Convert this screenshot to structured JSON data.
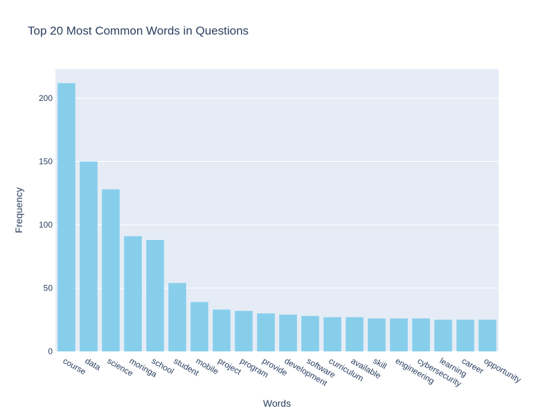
{
  "chart_data": {
    "type": "bar",
    "title": "Top 20 Most Common Words in Questions",
    "x_label": "Words",
    "y_label": "Frequency",
    "categories": [
      "course",
      "data",
      "science",
      "moringa",
      "school",
      "student",
      "mobile",
      "project",
      "program",
      "provide",
      "development",
      "software",
      "curriculum",
      "available",
      "skill",
      "engineering",
      "cybersecurity",
      "learning",
      "career",
      "opportunity"
    ],
    "values": [
      212,
      150,
      128,
      91,
      88,
      54,
      39,
      33,
      32,
      30,
      29,
      28,
      27,
      27,
      26,
      26,
      26,
      25,
      25,
      25
    ],
    "color": "#87ceeb",
    "ylim": [
      0,
      223
    ],
    "yticks": [
      0,
      50,
      100,
      150,
      200
    ],
    "grid": true
  }
}
